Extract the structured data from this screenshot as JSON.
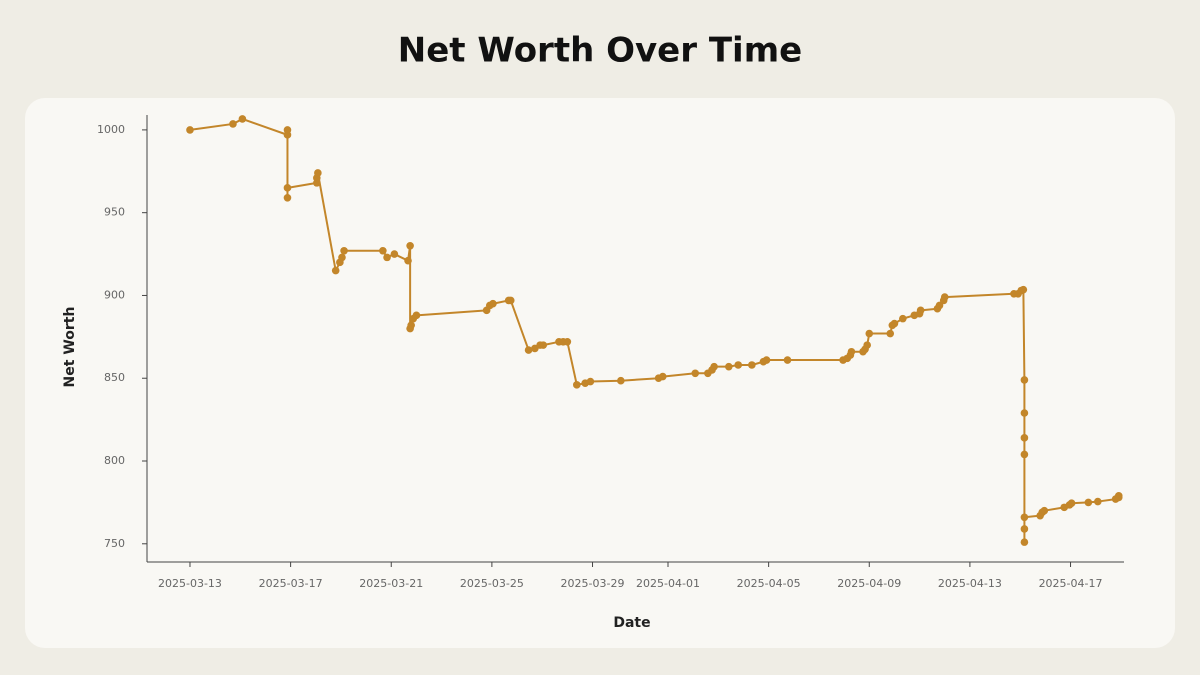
{
  "chart_data": {
    "type": "line",
    "title": "Net Worth Over Time",
    "xlabel": "Date",
    "ylabel": "Net Worth",
    "color": "#c3862a",
    "x": [
      "2025-03-13T00:00",
      "2025-03-14T17:00",
      "2025-03-15T02:00",
      "2025-03-16T21:00",
      "2025-03-16T21:00",
      "2025-03-16T21:00",
      "2025-03-16T21:00",
      "2025-03-18T01:00",
      "2025-03-18T01:00",
      "2025-03-18T02:00",
      "2025-03-18T19:00",
      "2025-03-18T23:00",
      "2025-03-19T01:00",
      "2025-03-19T03:00",
      "2025-03-20T16:00",
      "2025-03-20T20:00",
      "2025-03-21T03:00",
      "2025-03-21T16:00",
      "2025-03-21T18:00",
      "2025-03-21T18:00",
      "2025-03-21T19:00",
      "2025-03-21T21:00",
      "2025-03-22T00:00",
      "2025-03-24T19:00",
      "2025-03-24T22:00",
      "2025-03-25T01:00",
      "2025-03-25T16:00",
      "2025-03-25T18:00",
      "2025-03-26T11:00",
      "2025-03-26T17:00",
      "2025-03-26T22:00",
      "2025-03-27T01:00",
      "2025-03-27T16:00",
      "2025-03-27T20:00",
      "2025-03-28T00:00",
      "2025-03-28T09:00",
      "2025-03-28T17:00",
      "2025-03-28T22:00",
      "2025-03-30T03:00",
      "2025-03-31T15:00",
      "2025-03-31T19:00",
      "2025-04-02T02:00",
      "2025-04-02T14:00",
      "2025-04-02T18:00",
      "2025-04-02T20:00",
      "2025-04-03T10:00",
      "2025-04-03T19:00",
      "2025-04-04T08:00",
      "2025-04-04T19:00",
      "2025-04-04T22:00",
      "2025-04-05T18:00",
      "2025-04-07T23:00",
      "2025-04-08T03:00",
      "2025-04-08T06:00",
      "2025-04-08T07:00",
      "2025-04-08T18:00",
      "2025-04-08T20:00",
      "2025-04-08T22:00",
      "2025-04-09T00:00",
      "2025-04-09T20:00",
      "2025-04-09T22:00",
      "2025-04-10T00:00",
      "2025-04-10T08:00",
      "2025-04-10T19:00",
      "2025-04-11T00:00",
      "2025-04-11T01:00",
      "2025-04-11T17:00",
      "2025-04-11T19:00",
      "2025-04-11T23:00",
      "2025-04-12T00:00",
      "2025-04-14T18:00",
      "2025-04-14T22:00",
      "2025-04-15T01:00",
      "2025-04-15T03:00",
      "2025-04-15T04:00",
      "2025-04-15T04:00",
      "2025-04-15T04:00",
      "2025-04-15T04:00",
      "2025-04-15T04:00",
      "2025-04-15T04:00",
      "2025-04-15T04:00",
      "2025-04-15T19:00",
      "2025-04-15T21:00",
      "2025-04-15T23:00",
      "2025-04-16T18:00",
      "2025-04-16T23:00",
      "2025-04-17T01:00",
      "2025-04-17T17:00",
      "2025-04-18T02:00",
      "2025-04-18T19:00",
      "2025-04-18T22:00",
      "2025-04-18T22:00"
    ],
    "values": [
      1000,
      1003.6,
      1006.6,
      997,
      1000,
      959,
      965,
      968,
      971,
      974,
      915,
      920,
      923,
      927,
      927,
      923,
      925,
      921,
      930,
      880,
      882,
      886,
      888,
      891,
      894,
      895,
      897,
      897,
      867,
      868,
      870,
      870,
      872,
      872,
      872,
      846,
      847,
      848,
      848.5,
      850,
      851,
      853,
      853,
      855,
      857,
      857,
      858,
      858,
      860,
      861,
      861,
      861,
      862,
      864,
      866,
      866,
      867.5,
      870,
      877,
      877,
      882,
      883,
      886,
      888,
      889,
      891,
      892,
      894,
      897,
      899,
      901,
      901,
      903,
      903.5,
      849,
      829,
      814,
      804,
      759,
      751,
      766,
      767,
      769,
      770,
      772,
      773.5,
      774.5,
      775,
      775.5,
      777,
      778,
      779
    ],
    "xlim": [
      "2025-03-11T07:00",
      "2025-04-19T03:00"
    ],
    "xticks": [
      "2025-03-13",
      "2025-03-17",
      "2025-03-21",
      "2025-03-25",
      "2025-03-29",
      "2025-04-01",
      "2025-04-05",
      "2025-04-09",
      "2025-04-13",
      "2025-04-17"
    ],
    "ylim": [
      739,
      1009
    ],
    "yticks": [
      750,
      800,
      850,
      900,
      950,
      1000
    ]
  }
}
